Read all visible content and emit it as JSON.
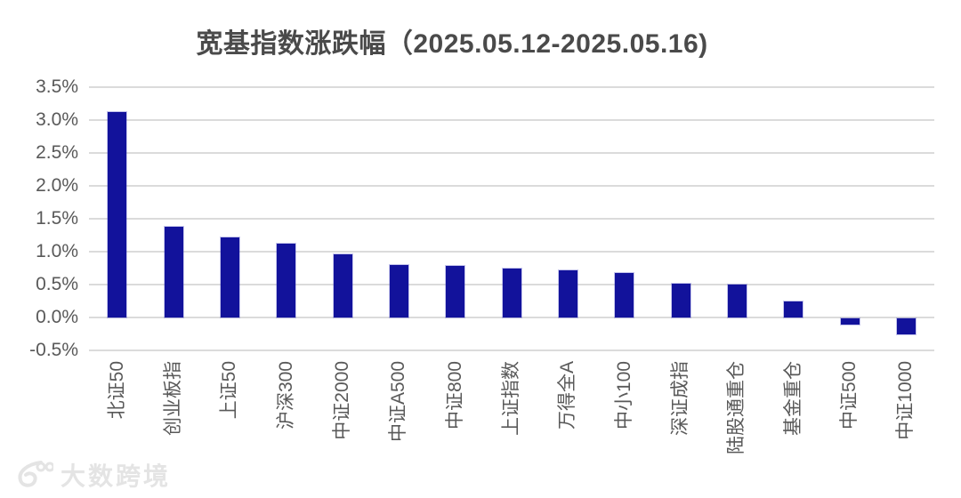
{
  "header": {
    "title": "宽基指数涨跌幅（2025.05.12-2025.05.16)"
  },
  "chart_data": {
    "type": "bar",
    "title": "宽基指数涨跌幅（2025.05.12-2025.05.16)",
    "categories": [
      "北证50",
      "创业板指",
      "上证50",
      "沪深300",
      "中证2000",
      "中证A500",
      "中证800",
      "上证指数",
      "万得全A",
      "中小100",
      "深证成指",
      "陆股通重仓",
      "基金重仓",
      "中证500",
      "中证1000"
    ],
    "values": [
      3.12,
      1.38,
      1.21,
      1.12,
      0.96,
      0.8,
      0.78,
      0.75,
      0.71,
      0.68,
      0.52,
      0.5,
      0.25,
      -0.1,
      -0.24
    ],
    "unit": "%",
    "xlabel": "",
    "ylabel": "",
    "ylim": [
      -0.5,
      3.5
    ],
    "ytick_step": 0.5,
    "ytick_labels": [
      "3.5%",
      "3.0%",
      "2.5%",
      "2.0%",
      "1.5%",
      "1.0%",
      "0.5%",
      "0.0%",
      "-0.5%"
    ],
    "grid": true,
    "legend_position": "none",
    "colors": {
      "bar": "#12129b",
      "gridline": "#dbdbdb",
      "axis_text": "#595959",
      "title_text": "#4a4a4a",
      "background": "#ffffff"
    }
  },
  "watermark": {
    "logo": "100-swoosh-logo",
    "text": "大数跨境",
    "color": "#e4e4e4"
  }
}
